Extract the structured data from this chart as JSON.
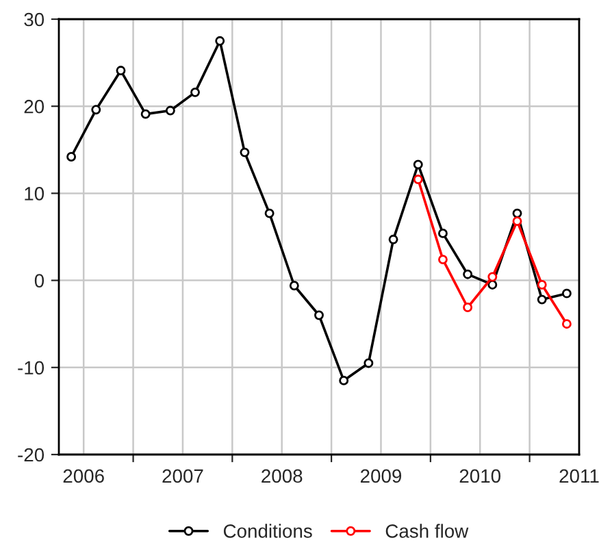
{
  "chart_data": {
    "type": "line",
    "x": [
      2006.375,
      2006.625,
      2006.875,
      2007.125,
      2007.375,
      2007.625,
      2007.875,
      2008.125,
      2008.375,
      2008.625,
      2008.875,
      2009.125,
      2009.375,
      2009.625,
      2009.875,
      2010.125,
      2010.375,
      2010.625,
      2010.875,
      2011.125,
      2011.375
    ],
    "series": [
      {
        "name": "Conditions",
        "color": "#000000",
        "values": [
          14.2,
          19.6,
          24.1,
          19.1,
          19.5,
          21.6,
          27.5,
          14.7,
          7.7,
          -0.6,
          -4,
          -11.5,
          -9.5,
          4.7,
          13.3,
          5.4,
          0.7,
          -0.5,
          7.7,
          -2.2,
          -1.5
        ]
      },
      {
        "name": "Cash flow",
        "color": "#ff0000",
        "x": [
          2009.875,
          2010.125,
          2010.375,
          2010.625,
          2010.875,
          2011.125,
          2011.375
        ],
        "values": [
          11.6,
          2.4,
          -3.1,
          0.4,
          6.8,
          -0.5,
          -5.0
        ]
      }
    ],
    "xlim": [
      2006.25,
      2011.5
    ],
    "ylim": [
      -20,
      30
    ],
    "xticks": [
      {
        "value": 2006.5,
        "label": "2006"
      },
      {
        "value": 2007,
        "label": null
      },
      {
        "value": 2007.5,
        "label": "2007"
      },
      {
        "value": 2008,
        "label": null
      },
      {
        "value": 2008.5,
        "label": "2008"
      },
      {
        "value": 2009,
        "label": null
      },
      {
        "value": 2009.5,
        "label": "2009"
      },
      {
        "value": 2010,
        "label": null
      },
      {
        "value": 2010.5,
        "label": "2010"
      },
      {
        "value": 2011,
        "label": null
      },
      {
        "value": 2011.5,
        "label": "2011"
      }
    ],
    "yticks": [
      -20,
      -10,
      0,
      10,
      20,
      30
    ],
    "grid": true,
    "legend": "bottom",
    "marker": "circle",
    "line_style": "solid"
  }
}
